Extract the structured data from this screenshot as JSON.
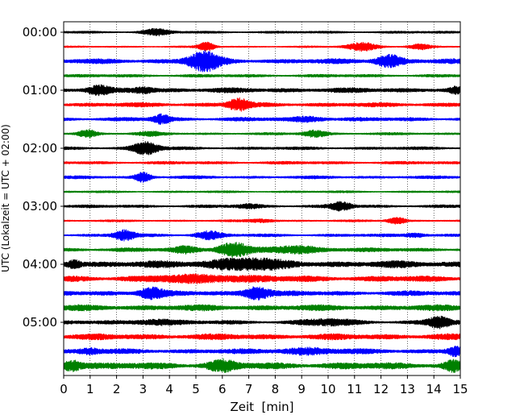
{
  "chart_data": {
    "type": "line",
    "title": "",
    "xlabel": "Zeit  [min]",
    "ylabel": "UTC (Lokalzeit = UTC + 02:00)",
    "xlim": [
      0,
      15
    ],
    "x_ticks": [
      "0",
      "1",
      "2",
      "3",
      "4",
      "5",
      "6",
      "7",
      "8",
      "9",
      "10",
      "11",
      "12",
      "13",
      "14",
      "15"
    ],
    "y_ticks": [
      {
        "label": "00:00",
        "trace": 0
      },
      {
        "label": "01:00",
        "trace": 4
      },
      {
        "label": "02:00",
        "trace": 8
      },
      {
        "label": "03:00",
        "trace": 12
      },
      {
        "label": "04:00",
        "trace": 16
      },
      {
        "label": "05:00",
        "trace": 20
      }
    ],
    "grid": "vertical dotted at each minute",
    "trace_interval_min": 15,
    "series_colors": [
      "#000000",
      "#ff0000",
      "#0000ff",
      "#008000"
    ],
    "series": [
      {
        "name": "00:00",
        "color": "#000000",
        "base_amp": 0.12,
        "bursts": [
          {
            "t": 3.5,
            "amp": 0.35,
            "w": 0.5
          }
        ]
      },
      {
        "name": "00:15",
        "color": "#ff0000",
        "base_amp": 0.08,
        "bursts": [
          {
            "t": 5.4,
            "amp": 0.55,
            "w": 0.3
          },
          {
            "t": 11.3,
            "amp": 0.5,
            "w": 0.6
          },
          {
            "t": 13.5,
            "amp": 0.3,
            "w": 0.4
          }
        ]
      },
      {
        "name": "00:30",
        "color": "#0000ff",
        "base_amp": 0.25,
        "bursts": [
          {
            "t": 5.3,
            "amp": 1.1,
            "w": 0.6
          },
          {
            "t": 12.3,
            "amp": 0.7,
            "w": 0.5
          }
        ]
      },
      {
        "name": "00:45",
        "color": "#008000",
        "base_amp": 0.15,
        "bursts": []
      },
      {
        "name": "01:00",
        "color": "#000000",
        "base_amp": 0.25,
        "bursts": [
          {
            "t": 1.3,
            "amp": 0.45,
            "w": 0.4
          },
          {
            "t": 3.0,
            "amp": 0.3,
            "w": 0.4
          },
          {
            "t": 14.8,
            "amp": 0.3,
            "w": 0.2
          }
        ]
      },
      {
        "name": "01:15",
        "color": "#ff0000",
        "base_amp": 0.22,
        "bursts": [
          {
            "t": 6.6,
            "amp": 0.7,
            "w": 0.4
          }
        ]
      },
      {
        "name": "01:30",
        "color": "#0000ff",
        "base_amp": 0.2,
        "bursts": [
          {
            "t": 3.7,
            "amp": 0.5,
            "w": 0.3
          },
          {
            "t": 9.3,
            "amp": 0.25,
            "w": 0.6
          }
        ]
      },
      {
        "name": "01:45",
        "color": "#008000",
        "base_amp": 0.12,
        "bursts": [
          {
            "t": 0.9,
            "amp": 0.45,
            "w": 0.35
          },
          {
            "t": 9.5,
            "amp": 0.4,
            "w": 0.45
          },
          {
            "t": 3.3,
            "amp": 0.2,
            "w": 0.5
          }
        ]
      },
      {
        "name": "02:00",
        "color": "#000000",
        "base_amp": 0.15,
        "bursts": [
          {
            "t": 3.1,
            "amp": 0.75,
            "w": 0.5
          }
        ]
      },
      {
        "name": "02:15",
        "color": "#ff0000",
        "base_amp": 0.15,
        "bursts": []
      },
      {
        "name": "02:30",
        "color": "#0000ff",
        "base_amp": 0.15,
        "bursts": [
          {
            "t": 3.0,
            "amp": 0.55,
            "w": 0.3
          }
        ]
      },
      {
        "name": "02:45",
        "color": "#008000",
        "base_amp": 0.1,
        "bursts": []
      },
      {
        "name": "03:00",
        "color": "#000000",
        "base_amp": 0.15,
        "bursts": [
          {
            "t": 10.5,
            "amp": 0.5,
            "w": 0.4
          },
          {
            "t": 7.0,
            "amp": 0.2,
            "w": 0.5
          }
        ]
      },
      {
        "name": "03:15",
        "color": "#ff0000",
        "base_amp": 0.1,
        "bursts": [
          {
            "t": 12.6,
            "amp": 0.4,
            "w": 0.35
          },
          {
            "t": 7.5,
            "amp": 0.18,
            "w": 0.5
          }
        ]
      },
      {
        "name": "03:30",
        "color": "#0000ff",
        "base_amp": 0.15,
        "bursts": [
          {
            "t": 2.3,
            "amp": 0.6,
            "w": 0.4
          },
          {
            "t": 5.5,
            "amp": 0.45,
            "w": 0.5
          },
          {
            "t": 13.3,
            "amp": 0.25,
            "w": 0.4
          }
        ]
      },
      {
        "name": "03:45",
        "color": "#008000",
        "base_amp": 0.2,
        "bursts": [
          {
            "t": 6.4,
            "amp": 0.8,
            "w": 0.6
          },
          {
            "t": 4.6,
            "amp": 0.35,
            "w": 0.5
          },
          {
            "t": 8.8,
            "amp": 0.35,
            "w": 1.2
          }
        ]
      },
      {
        "name": "04:00",
        "color": "#000000",
        "base_amp": 0.35,
        "bursts": [
          {
            "t": 6.8,
            "amp": 0.6,
            "w": 1.3
          },
          {
            "t": 0.4,
            "amp": 0.4,
            "w": 0.25
          }
        ]
      },
      {
        "name": "04:15",
        "color": "#ff0000",
        "base_amp": 0.3,
        "bursts": [
          {
            "t": 5.5,
            "amp": 0.3,
            "w": 2.0
          }
        ]
      },
      {
        "name": "04:30",
        "color": "#0000ff",
        "base_amp": 0.25,
        "bursts": [
          {
            "t": 3.3,
            "amp": 0.6,
            "w": 0.5
          },
          {
            "t": 7.3,
            "amp": 0.75,
            "w": 0.5
          }
        ]
      },
      {
        "name": "04:45",
        "color": "#008000",
        "base_amp": 0.3,
        "bursts": []
      },
      {
        "name": "05:00",
        "color": "#000000",
        "base_amp": 0.2,
        "bursts": [
          {
            "t": 14.2,
            "amp": 0.65,
            "w": 0.45
          },
          {
            "t": 3.5,
            "amp": 0.3,
            "w": 0.8
          },
          {
            "t": 10.0,
            "amp": 0.3,
            "w": 1.0
          }
        ]
      },
      {
        "name": "05:15",
        "color": "#ff0000",
        "base_amp": 0.3,
        "bursts": []
      },
      {
        "name": "05:30",
        "color": "#0000ff",
        "base_amp": 0.25,
        "bursts": [
          {
            "t": 14.8,
            "amp": 0.5,
            "w": 0.3
          },
          {
            "t": 1.0,
            "amp": 0.3,
            "w": 0.4
          },
          {
            "t": 9.2,
            "amp": 0.3,
            "w": 1.0
          }
        ]
      },
      {
        "name": "05:45",
        "color": "#008000",
        "base_amp": 0.35,
        "bursts": [
          {
            "t": 0.3,
            "amp": 0.6,
            "w": 0.4
          },
          {
            "t": 6.0,
            "amp": 0.5,
            "w": 0.5
          },
          {
            "t": 14.7,
            "amp": 0.5,
            "w": 0.3
          }
        ]
      }
    ]
  }
}
